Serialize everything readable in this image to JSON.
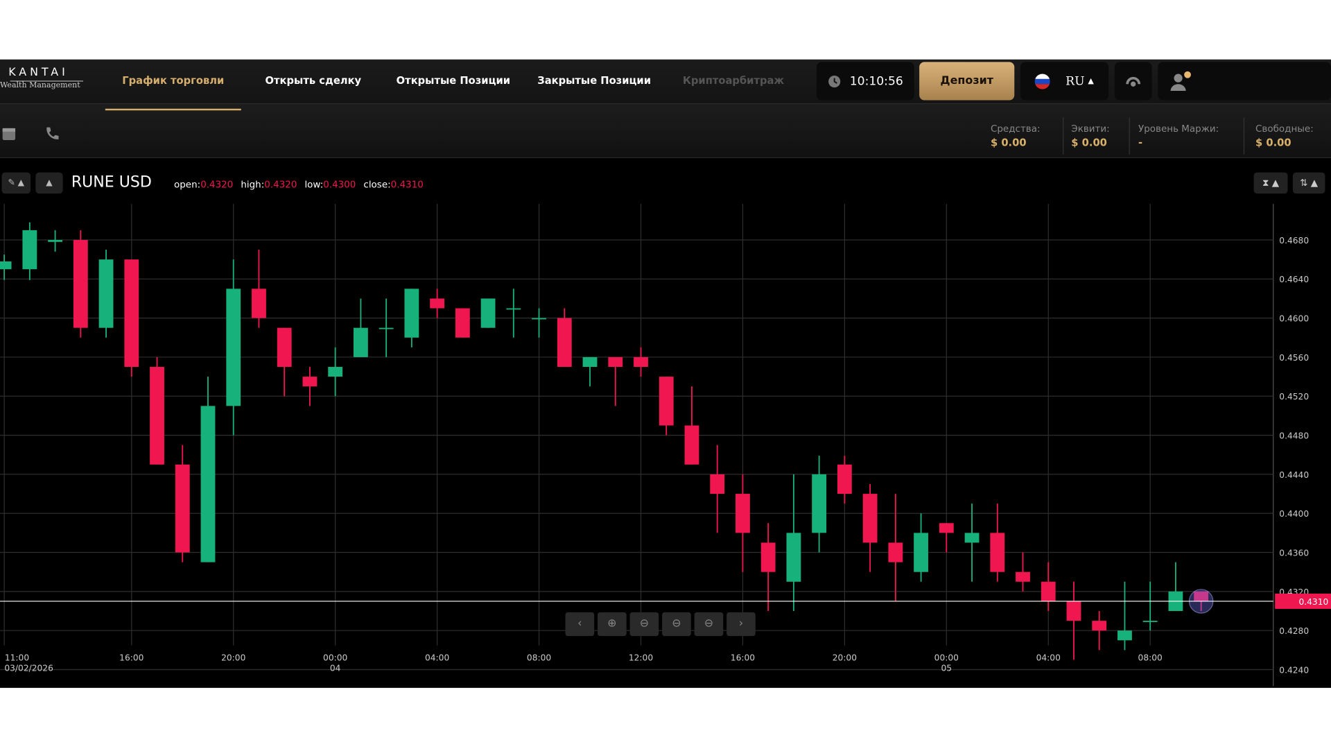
{
  "nav": {
    "logo": "KANTAI",
    "logo_sub": "Wealth Management",
    "tabs": [
      "График торговли",
      "Открыть сделку",
      "Открытые Позиции",
      "Закрытые Позиции",
      "Криптоарбитраж"
    ],
    "active_tab": 0,
    "disabled_tab": 4,
    "clock": "10:10:56",
    "deposit": "Депозит",
    "language": "RU"
  },
  "account": [
    {
      "label": "Средства:",
      "value": "$ 0.00"
    },
    {
      "label": "Эквити:",
      "value": "$ 0.00"
    },
    {
      "label": "Уровень Маржи:",
      "value": "-"
    },
    {
      "label": "Свободные:",
      "value": "$ 0.00"
    }
  ],
  "chart_data": {
    "type": "candlestick",
    "title": "RUNE USD",
    "ohlc_header": [
      {
        "label": "open:",
        "value": "0.4320"
      },
      {
        "label": "high:",
        "value": "0.4320"
      },
      {
        "label": "low:",
        "value": "0.4300"
      },
      {
        "label": "close:",
        "value": "0.4310"
      }
    ],
    "categories": [
      "11:00",
      null,
      null,
      null,
      null,
      "16:00",
      null,
      null,
      null,
      "20:00",
      null,
      null,
      null,
      "00:00",
      null,
      null,
      null,
      "04:00",
      null,
      null,
      null,
      "08:00",
      null,
      null,
      null,
      "12:00",
      null,
      null,
      null,
      "16:00",
      null,
      null,
      null,
      "20:00",
      null,
      null,
      null,
      "00:00",
      null,
      null,
      null,
      "04:00",
      null,
      null,
      null,
      "08:00",
      null,
      null
    ],
    "date_labels": [
      "03/02/2026",
      null,
      null,
      null,
      null,
      null,
      null,
      null,
      null,
      null,
      null,
      null,
      null,
      "04",
      null,
      null,
      null,
      null,
      null,
      null,
      null,
      null,
      null,
      null,
      null,
      null,
      null,
      null,
      null,
      null,
      null,
      null,
      null,
      null,
      null,
      null,
      null,
      "05",
      null,
      null,
      null,
      null,
      null,
      null,
      null,
      null,
      null,
      null
    ],
    "series": [
      {
        "open": [
          0.465,
          0.465,
          0.4678,
          0.468,
          0.459,
          0.466,
          0.455,
          0.445,
          0.435,
          0.451,
          0.463,
          0.459,
          0.454,
          0.454,
          0.456,
          0.4589,
          0.458,
          0.462,
          0.461,
          0.459,
          0.4609,
          0.4599,
          0.46,
          0.455,
          0.456,
          0.456,
          0.454,
          0.449,
          0.444,
          0.442,
          0.437,
          0.433,
          0.438,
          0.445,
          0.442,
          0.437,
          0.434,
          0.439,
          0.437,
          0.438,
          0.434,
          0.433,
          0.431,
          0.429,
          0.427,
          0.4289,
          0.43,
          0.432
        ],
        "high": [
          0.4665,
          0.4698,
          0.469,
          0.469,
          0.467,
          0.466,
          0.456,
          0.447,
          0.454,
          0.466,
          0.467,
          0.459,
          0.455,
          0.457,
          0.462,
          0.462,
          0.463,
          0.463,
          0.461,
          0.462,
          0.463,
          0.461,
          0.461,
          0.456,
          0.456,
          0.457,
          0.454,
          0.453,
          0.447,
          0.444,
          0.439,
          0.444,
          0.4459,
          0.4459,
          0.443,
          0.442,
          0.44,
          0.439,
          0.441,
          0.441,
          0.436,
          0.435,
          0.433,
          0.43,
          0.433,
          0.433,
          0.435,
          0.432
        ],
        "low": [
          0.4639,
          0.4639,
          0.4668,
          0.458,
          0.458,
          0.454,
          0.445,
          0.435,
          0.435,
          0.448,
          0.459,
          0.452,
          0.451,
          0.452,
          0.456,
          0.456,
          0.457,
          0.46,
          0.458,
          0.459,
          0.458,
          0.458,
          0.455,
          0.453,
          0.451,
          0.454,
          0.448,
          0.445,
          0.438,
          0.434,
          0.43,
          0.43,
          0.436,
          0.441,
          0.434,
          0.431,
          0.433,
          0.436,
          0.433,
          0.433,
          0.432,
          0.43,
          0.425,
          0.426,
          0.426,
          0.428,
          0.43,
          0.43
        ],
        "close": [
          0.4658,
          0.469,
          0.468,
          0.459,
          0.466,
          0.455,
          0.445,
          0.436,
          0.451,
          0.463,
          0.46,
          0.455,
          0.453,
          0.455,
          0.459,
          0.459,
          0.463,
          0.461,
          0.458,
          0.462,
          0.461,
          0.46,
          0.455,
          0.456,
          0.455,
          0.455,
          0.449,
          0.445,
          0.442,
          0.438,
          0.434,
          0.438,
          0.444,
          0.442,
          0.437,
          0.435,
          0.438,
          0.438,
          0.438,
          0.434,
          0.433,
          0.431,
          0.429,
          0.428,
          0.428,
          0.429,
          0.432,
          0.431
        ]
      }
    ],
    "up_color": "#17b27b",
    "down_color": "#f0164f",
    "ylim": [
      0.423,
      0.4717
    ],
    "yticks": [
      {
        "value": 0.468,
        "label": "0.4680"
      },
      {
        "value": 0.464,
        "label": "0.4640"
      },
      {
        "value": 0.46,
        "label": "0.4600"
      },
      {
        "value": 0.456,
        "label": "0.4560"
      },
      {
        "value": 0.452,
        "label": "0.4520"
      },
      {
        "value": 0.448,
        "label": "0.4480"
      },
      {
        "value": 0.444,
        "label": "0.4440"
      },
      {
        "value": 0.44,
        "label": "0.4400"
      },
      {
        "value": 0.436,
        "label": "0.4360"
      },
      {
        "value": 0.432,
        "label": "0.4320"
      },
      {
        "value": 0.428,
        "label": "0.4280"
      },
      {
        "value": 0.424,
        "label": "0.4240"
      }
    ],
    "last_price": {
      "value": 0.431,
      "label": "0.4310"
    },
    "grid": true
  }
}
